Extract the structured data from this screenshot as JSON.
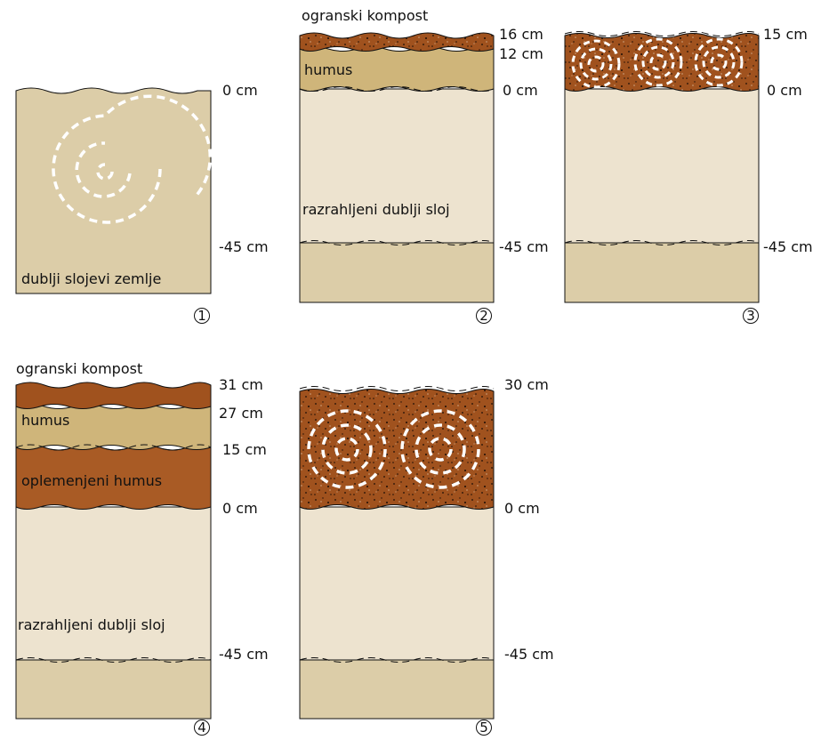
{
  "panels": [
    {
      "number": "1",
      "depth_labels": [
        "0 cm",
        "-45 cm"
      ],
      "layer_labels": [
        "dublji slojevi zemlje"
      ]
    },
    {
      "number": "2",
      "top_label": "ogranski kompost",
      "depth_labels": [
        "16 cm",
        "12 cm",
        "0 cm",
        "-45 cm"
      ],
      "layer_labels": [
        "humus",
        "razrahljeni dublji sloj"
      ]
    },
    {
      "number": "3",
      "depth_labels": [
        "15 cm",
        "0 cm",
        "-45 cm"
      ],
      "layer_labels": []
    },
    {
      "number": "4",
      "top_label": "ogranski kompost",
      "depth_labels": [
        "31 cm",
        "27 cm",
        "15 cm",
        "0 cm",
        "-45 cm"
      ],
      "layer_labels": [
        "humus",
        "oplemenjeni humus",
        "razrahljeni dublji sloj"
      ]
    },
    {
      "number": "5",
      "depth_labels": [
        "30 cm",
        "0 cm",
        "-45 cm"
      ],
      "layer_labels": []
    }
  ],
  "colors": {
    "deep_soil": "#dccda8",
    "loosened_soil": "#ede3cf",
    "humus": "#cfb57a",
    "compost": "#a0521e",
    "enriched_humus": "#a95b25",
    "outline": "#111111",
    "swirl": "#ffffff"
  }
}
